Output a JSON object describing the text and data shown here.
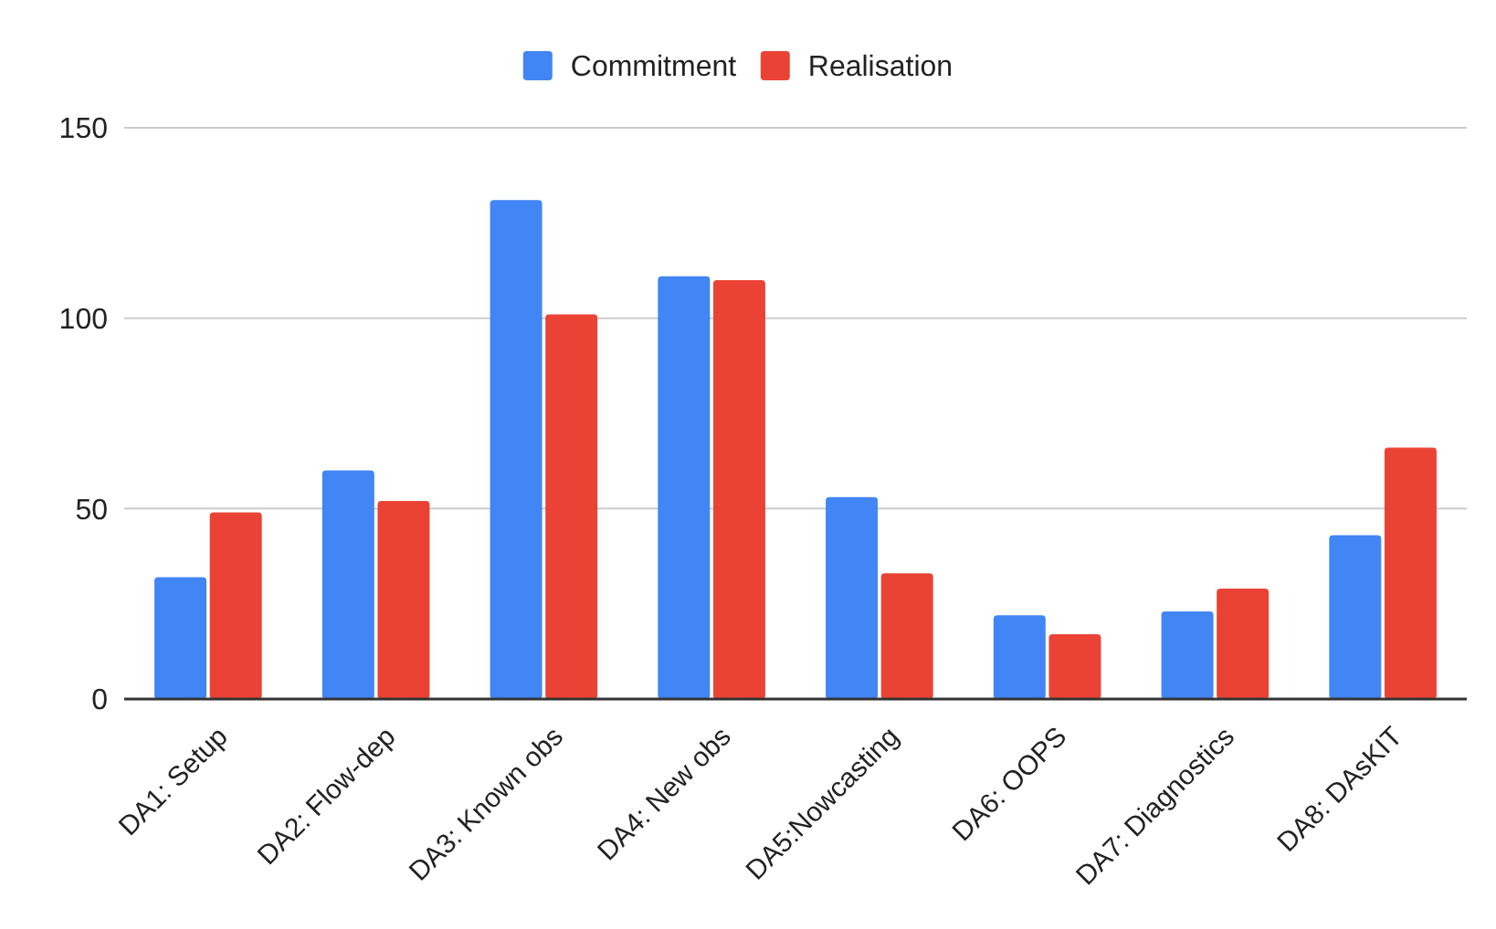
{
  "chart_data": {
    "type": "bar",
    "categories": [
      "DA1: Setup",
      "DA2: Flow-dep",
      "DA3: Known obs",
      "DA4: New obs",
      "DA5:Nowcasting",
      "DA6: OOPS",
      "DA7: Diagnostics",
      "DA8: DAsKIT"
    ],
    "series": [
      {
        "name": "Commitment",
        "color": "#4285f4",
        "values": [
          32,
          60,
          131,
          111,
          53,
          22,
          23,
          43
        ]
      },
      {
        "name": "Realisation",
        "color": "#ea4335",
        "values": [
          49,
          52,
          101,
          110,
          33,
          17,
          29,
          66
        ]
      }
    ],
    "ylim": [
      0,
      150
    ],
    "yticks": [
      0,
      50,
      100,
      150
    ],
    "grid": "y",
    "legend": "top"
  }
}
